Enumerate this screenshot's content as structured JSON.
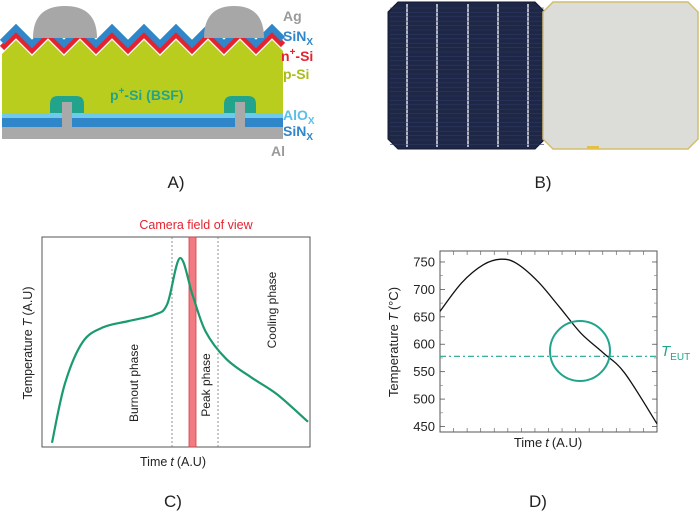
{
  "panels": {
    "a": {
      "caption": "A)",
      "layer_labels": {
        "ag": "Ag",
        "sinx_top": "SiN",
        "sinx_top_sub": "X",
        "nplus_n": "n",
        "nplus_sup": "+",
        "nplus_rest": "-Si",
        "psi": "p-Si",
        "alox": "AlO",
        "alox_sub": "X",
        "sinx_bot": "SiN",
        "sinx_bot_sub": "X",
        "al": "Al"
      },
      "bsf_label": {
        "p": "p",
        "sup": "+",
        "rest": "-Si (BSF)"
      }
    },
    "b": {
      "caption": "B)"
    },
    "c": {
      "caption": "C)",
      "camera_label": "Camera field of view",
      "xlabel": "Time",
      "xlabel_var": "t",
      "xlabel_unit": "(A.U)",
      "ylabel": "Temperature",
      "ylabel_var": "T",
      "ylabel_unit": "(A.U)",
      "phases": {
        "burnout": "Burnout phase",
        "peak": "Peak phase",
        "cooling": "Cooling phase"
      }
    },
    "d": {
      "caption": "D)",
      "xlabel": "Time",
      "xlabel_var": "t",
      "xlabel_unit": "(A.U)",
      "ylabel": "Temperature",
      "ylabel_var": "T",
      "ylabel_unit": "(°C)",
      "teut_label": "T",
      "teut_sub": "EUT"
    }
  },
  "colors": {
    "green": "#1b9a6e",
    "red": "#e5232f",
    "blue": "#2f86c8",
    "ag": "#a7a7a7",
    "psi": "#b9cd1f",
    "teal": "#22a48c",
    "al": "#a9a9a9"
  },
  "chart_data": [
    {
      "type": "line",
      "title": "Camera field of view",
      "xlabel": "Time t (A.U)",
      "ylabel": "Temperature T (A.U)",
      "annotations": [
        "Burnout phase",
        "Peak phase",
        "Cooling phase"
      ],
      "x": [
        0,
        0.05,
        0.12,
        0.2,
        0.3,
        0.4,
        0.45,
        0.5,
        0.55,
        0.6,
        0.68,
        0.78,
        0.88,
        1.0
      ],
      "values": [
        0.02,
        0.3,
        0.5,
        0.57,
        0.6,
        0.63,
        0.68,
        0.9,
        0.72,
        0.55,
        0.42,
        0.33,
        0.25,
        0.12
      ]
    },
    {
      "type": "line",
      "xlabel": "Time t (A.U)",
      "ylabel": "Temperature T (°C)",
      "ylim": [
        440,
        770
      ],
      "yticks": [
        450,
        500,
        550,
        600,
        650,
        700,
        750
      ],
      "x": [
        0,
        0.1,
        0.2,
        0.28,
        0.35,
        0.45,
        0.55,
        0.65,
        0.75,
        0.85,
        1.0
      ],
      "values": [
        660,
        712,
        745,
        755,
        748,
        715,
        668,
        620,
        585,
        548,
        455
      ],
      "threshold": {
        "name": "T_EUT",
        "value": 578
      }
    }
  ]
}
